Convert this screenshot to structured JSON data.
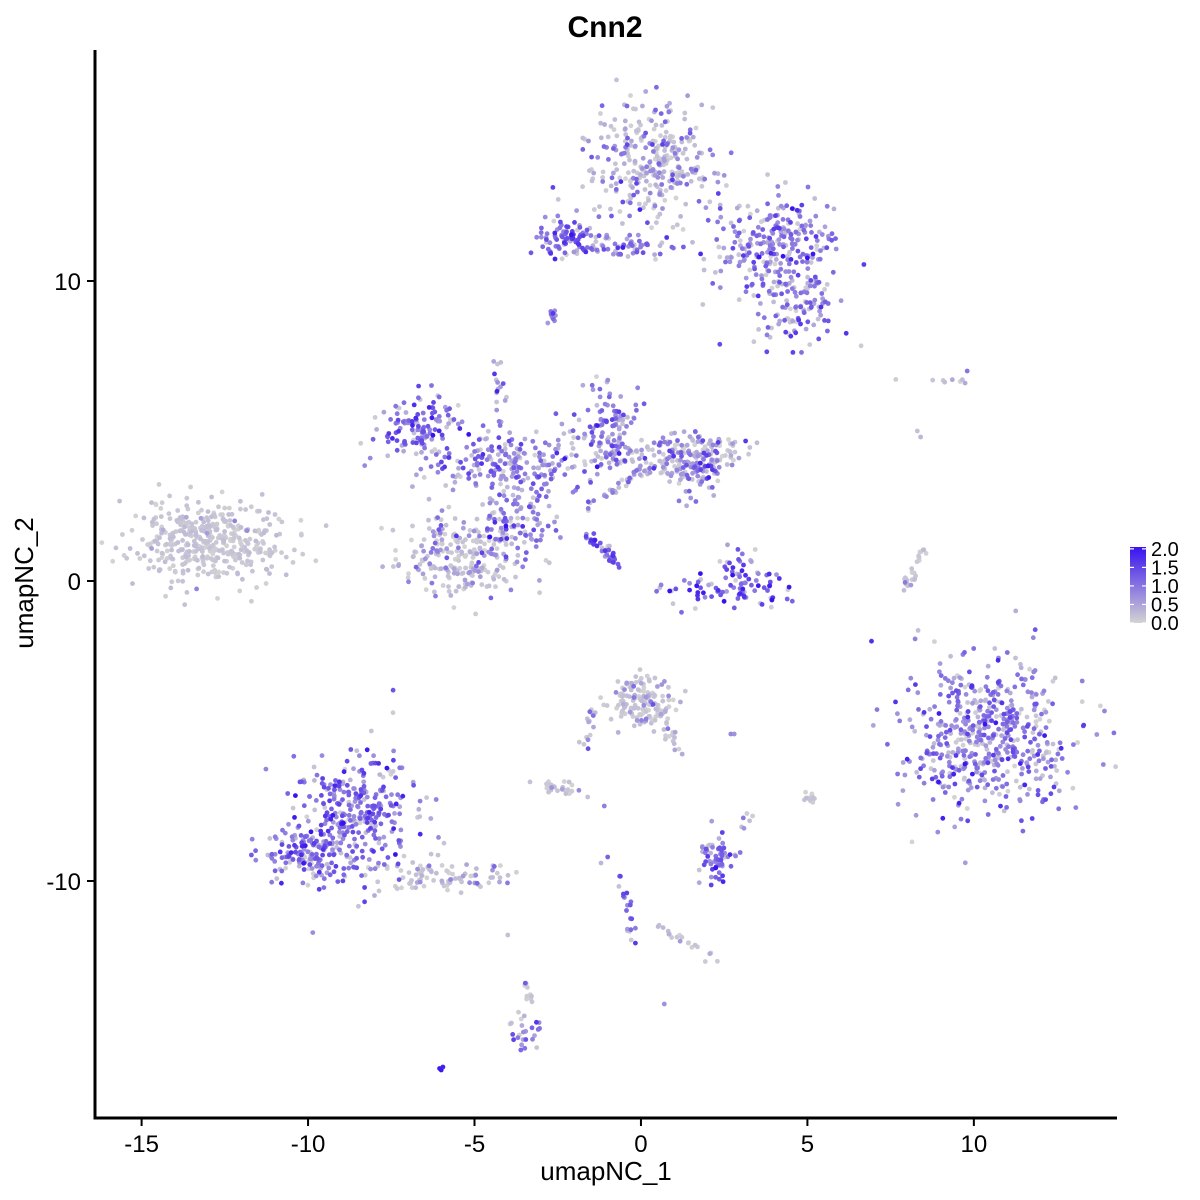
{
  "chart_data": {
    "type": "scatter",
    "title": "Cnn2",
    "xlabel": "umapNC_1",
    "ylabel": "umapNC_2",
    "xlim": [
      -16.4,
      14.3
    ],
    "ylim": [
      -17.9,
      17.7
    ],
    "xticks": [
      {
        "value": -15,
        "label": "-15"
      },
      {
        "value": -10,
        "label": "-10"
      },
      {
        "value": -5,
        "label": "-5"
      },
      {
        "value": 0,
        "label": "0"
      },
      {
        "value": 5,
        "label": "5"
      },
      {
        "value": 10,
        "label": "10"
      }
    ],
    "yticks": [
      {
        "value": 10,
        "label": "10"
      },
      {
        "value": 0,
        "label": "0"
      },
      {
        "value": -10,
        "label": "-10"
      }
    ],
    "grid": false,
    "legend": {
      "placement": "right",
      "type": "colorbar",
      "ticks": [
        {
          "value": 2.0,
          "label": "2.0"
        },
        {
          "value": 1.5,
          "label": "1.5"
        },
        {
          "value": 1.0,
          "label": "1.0"
        },
        {
          "value": 0.5,
          "label": "0.5"
        },
        {
          "value": 0.0,
          "label": "0.0"
        }
      ],
      "range": [
        0,
        2.05
      ]
    },
    "colors": {
      "low": "#d3d3d3",
      "high": "#3a12f0"
    },
    "clusters": [
      {
        "x": -13,
        "y": 1.3,
        "sx": 1.1,
        "sy": 0.7,
        "n": 420,
        "expr": 0.05
      },
      {
        "x": 0.3,
        "y": 14,
        "sx": 0.9,
        "sy": 1.0,
        "n": 320,
        "expr": 0.6
      },
      {
        "x": 4,
        "y": 11.2,
        "sx": 1.0,
        "sy": 0.8,
        "n": 260,
        "expr": 0.9
      },
      {
        "x": -2.2,
        "y": 11.4,
        "sx": 0.5,
        "sy": 0.3,
        "n": 90,
        "expr": 1.2
      },
      {
        "x": -0.5,
        "y": 11.1,
        "sx": 1.0,
        "sy": 0.2,
        "n": 60,
        "expr": 0.9
      },
      {
        "x": 4.7,
        "y": 9.2,
        "sx": 0.7,
        "sy": 0.7,
        "n": 110,
        "expr": 0.9
      },
      {
        "x": -6.6,
        "y": 5.1,
        "sx": 0.6,
        "sy": 0.5,
        "n": 120,
        "expr": 1.1
      },
      {
        "x": -4,
        "y": 3.8,
        "sx": 1.3,
        "sy": 0.5,
        "n": 220,
        "expr": 0.9
      },
      {
        "x": -1,
        "y": 5.2,
        "sx": 0.5,
        "sy": 0.7,
        "n": 110,
        "expr": 1.0
      },
      {
        "x": 1,
        "y": 4.1,
        "sx": 1.3,
        "sy": 0.4,
        "n": 160,
        "expr": 0.6
      },
      {
        "x": 1.7,
        "y": 3.9,
        "sx": 0.4,
        "sy": 0.5,
        "n": 90,
        "expr": 0.9
      },
      {
        "x": -5.3,
        "y": 0.8,
        "sx": 1.0,
        "sy": 0.7,
        "n": 240,
        "expr": 0.5
      },
      {
        "x": -3.7,
        "y": 2.0,
        "sx": 0.5,
        "sy": 0.6,
        "n": 90,
        "expr": 0.9
      },
      {
        "x": 2.8,
        "y": -0.3,
        "sx": 1.0,
        "sy": 0.3,
        "n": 70,
        "expr": 1.4
      },
      {
        "x": 3,
        "y": 0.5,
        "sx": 0.3,
        "sy": 0.4,
        "n": 30,
        "expr": 1.0
      },
      {
        "x": 10.5,
        "y": -5.2,
        "sx": 1.2,
        "sy": 1.3,
        "n": 550,
        "expr": 0.9
      },
      {
        "x": -8.6,
        "y": -7.8,
        "sx": 0.9,
        "sy": 1.1,
        "n": 330,
        "expr": 1.1
      },
      {
        "x": -10,
        "y": -9.1,
        "sx": 0.6,
        "sy": 0.5,
        "n": 140,
        "expr": 1.0
      },
      {
        "x": -5.8,
        "y": -9.9,
        "sx": 1.1,
        "sy": 0.25,
        "n": 90,
        "expr": 0.4
      },
      {
        "x": 0,
        "y": -4,
        "sx": 0.5,
        "sy": 0.4,
        "n": 140,
        "expr": 0.3
      },
      {
        "x": 2.3,
        "y": -9.2,
        "sx": 0.3,
        "sy": 0.4,
        "n": 60,
        "expr": 1.1
      },
      {
        "x": -2.5,
        "y": -6.9,
        "sx": 0.3,
        "sy": 0.15,
        "n": 25,
        "expr": 0.3
      },
      {
        "x": -3.5,
        "y": -15,
        "sx": 0.25,
        "sy": 0.4,
        "n": 25,
        "expr": 0.9
      }
    ],
    "segments": [
      {
        "x0": -1.6,
        "y0": 1.5,
        "x1": -0.8,
        "y1": 0.7,
        "n": 40,
        "expr": 1.3
      },
      {
        "x0": -1.6,
        "y0": 2.5,
        "x1": 0.4,
        "y1": 3.9,
        "n": 40,
        "expr": 0.6
      },
      {
        "x0": -4.3,
        "y0": 7.5,
        "x1": -4.1,
        "y1": 2.8,
        "n": 30,
        "expr": 0.8
      },
      {
        "x0": 8.5,
        "y0": 1.1,
        "x1": 7.9,
        "y1": -0.3,
        "n": 25,
        "expr": 0.2
      },
      {
        "x0": -0.6,
        "y0": -9.7,
        "x1": -0.3,
        "y1": -12,
        "n": 20,
        "expr": 1.2
      },
      {
        "x0": 0.5,
        "y0": -4.2,
        "x1": 1.2,
        "y1": -5.8,
        "n": 25,
        "expr": 0.3
      },
      {
        "x0": -1.4,
        "y0": -4.2,
        "x1": -1.8,
        "y1": -6.0,
        "n": 15,
        "expr": 0.6
      },
      {
        "x0": 0.5,
        "y0": -11.5,
        "x1": 2.3,
        "y1": -12.6,
        "n": 20,
        "expr": 0.4
      },
      {
        "x0": -3.4,
        "y0": -13.4,
        "x1": -3.3,
        "y1": -14.0,
        "n": 10,
        "expr": 0.5
      },
      {
        "x0": -2.7,
        "y0": 9.0,
        "x1": -2.7,
        "y1": 8.5,
        "n": 10,
        "expr": 0.7
      },
      {
        "x0": 7,
        "y0": 6.8,
        "x1": 9.8,
        "y1": 6.7,
        "n": 8,
        "expr": 0.2
      },
      {
        "x0": 5,
        "y0": -7.1,
        "x1": 5.1,
        "y1": -7.4,
        "n": 12,
        "expr": 0.2
      },
      {
        "x0": 3.4,
        "y0": -7.6,
        "x1": 3.1,
        "y1": -8.4,
        "n": 6,
        "expr": 0.4
      }
    ],
    "points": [
      {
        "x": -6,
        "y": -16.3,
        "expr": 2.0
      },
      {
        "x": -6.05,
        "y": -16.25,
        "expr": 2.0
      },
      {
        "x": -5.95,
        "y": -16.2,
        "expr": 1.9
      },
      {
        "x": 0.7,
        "y": -14.1,
        "expr": 0.7
      },
      {
        "x": 9.8,
        "y": 7,
        "expr": 1.0
      },
      {
        "x": 8.4,
        "y": 4.8,
        "expr": 0.3
      },
      {
        "x": 8.3,
        "y": 5.0,
        "expr": 0.2
      },
      {
        "x": 2.7,
        "y": -5.1,
        "expr": 0.8
      },
      {
        "x": 2.8,
        "y": -5.1,
        "expr": 0.7
      },
      {
        "x": -4,
        "y": -11.8,
        "expr": 0.2
      },
      {
        "x": -1.2,
        "y": -9.4,
        "expr": 0.3
      },
      {
        "x": -1.0,
        "y": -9.2,
        "expr": 1.2
      },
      {
        "x": -1.6,
        "y": -7.2,
        "expr": 0.2
      },
      {
        "x": -1.1,
        "y": -7.5,
        "expr": 0.9
      }
    ]
  }
}
